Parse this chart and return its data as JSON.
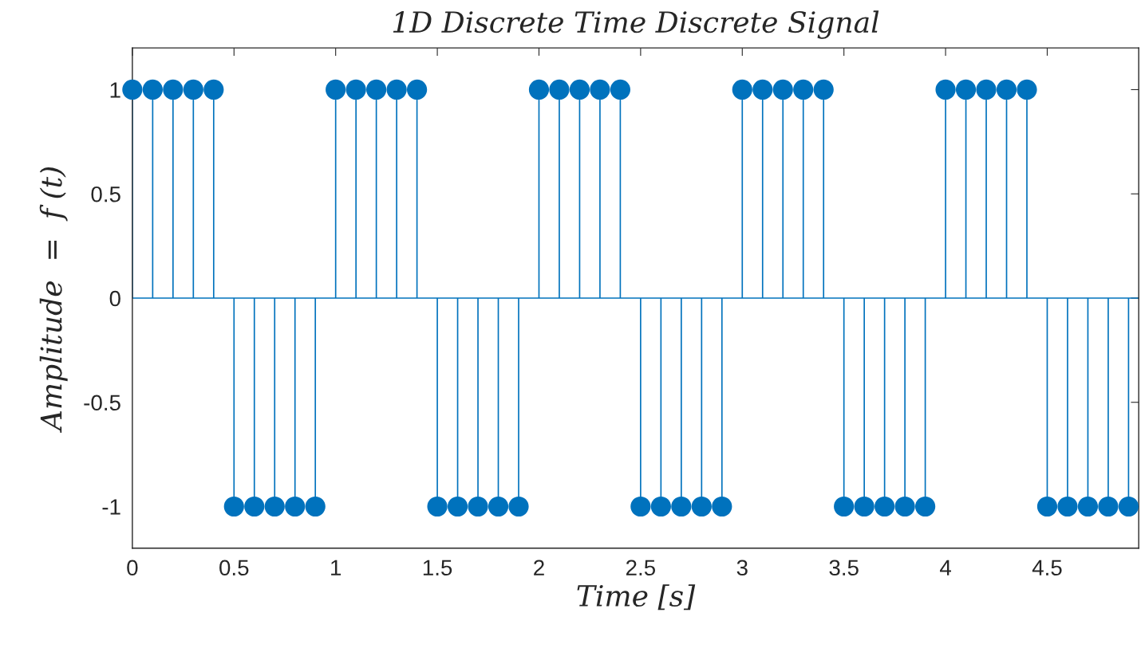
{
  "chart_data": {
    "type": "lollipop",
    "title": "1D Discrete Time Discrete Signal",
    "xlabel": "Time [s]",
    "ylabel": "Amplitude  =  f (t)",
    "x": [
      0,
      0.1,
      0.2,
      0.3,
      0.4,
      0.5,
      0.6,
      0.7,
      0.8,
      0.9,
      1,
      1.1,
      1.2,
      1.3,
      1.4,
      1.5,
      1.6,
      1.7,
      1.8,
      1.9,
      2,
      2.1,
      2.2,
      2.3,
      2.4,
      2.5,
      2.6,
      2.7,
      2.8,
      2.9,
      3,
      3.1,
      3.2,
      3.3,
      3.4,
      3.5,
      3.6,
      3.7,
      3.8,
      3.9,
      4,
      4.1,
      4.2,
      4.3,
      4.4,
      4.5,
      4.6,
      4.7,
      4.8,
      4.9
    ],
    "values": [
      1,
      1,
      1,
      1,
      1,
      -1,
      -1,
      -1,
      -1,
      -1,
      1,
      1,
      1,
      1,
      1,
      -1,
      -1,
      -1,
      -1,
      -1,
      1,
      1,
      1,
      1,
      1,
      -1,
      -1,
      -1,
      -1,
      -1,
      1,
      1,
      1,
      1,
      1,
      -1,
      -1,
      -1,
      -1,
      -1,
      1,
      1,
      1,
      1,
      1,
      -1,
      -1,
      -1,
      -1,
      -1
    ],
    "color": "#0072bd",
    "marker": "circle",
    "xlim": [
      0,
      4.95
    ],
    "xticks": [
      0,
      0.5,
      1,
      1.5,
      2,
      2.5,
      3,
      3.5,
      4,
      4.5
    ],
    "ylim": [
      -1.2,
      1.2
    ],
    "yticks": [
      {
        "value": -1,
        "label": "-1"
      },
      {
        "value": -0.5,
        "label": "-0.5"
      },
      0,
      0.5,
      1
    ],
    "ref_lines": [
      {
        "axis": "y",
        "value": 0,
        "color": "#0072bd"
      }
    ],
    "grid": false,
    "legend": false
  }
}
